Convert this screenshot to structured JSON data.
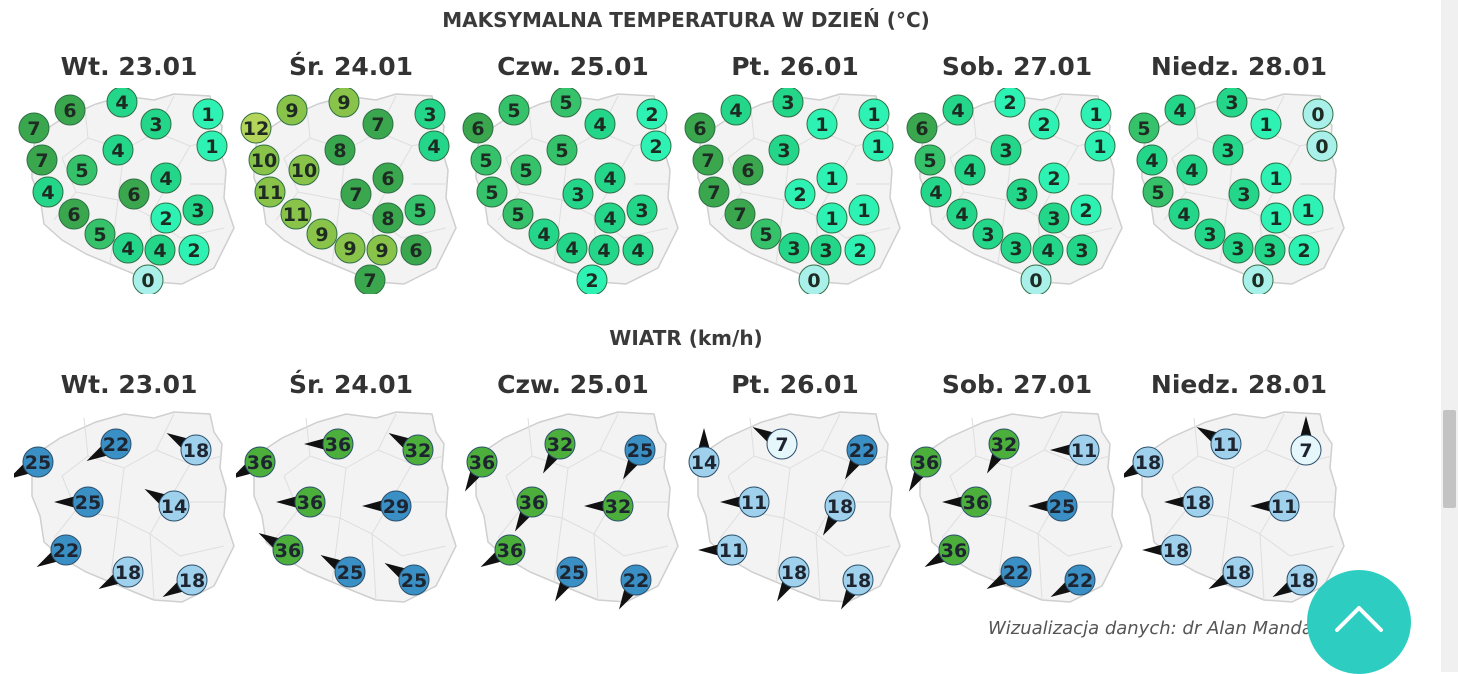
{
  "temperature": {
    "title": "MAKSYMALNA TEMPERATURA W DZIEŃ (°C)",
    "days": [
      {
        "label": "Wt. 23.01",
        "values": [
          7,
          6,
          4,
          3,
          1,
          1,
          4,
          7,
          5,
          4,
          4,
          6,
          6,
          2,
          3,
          5,
          4,
          4,
          2,
          0
        ]
      },
      {
        "label": "Śr. 24.01",
        "values": [
          12,
          9,
          9,
          7,
          3,
          4,
          8,
          10,
          10,
          6,
          11,
          7,
          11,
          8,
          5,
          9,
          9,
          9,
          6,
          7
        ]
      },
      {
        "label": "Czw. 25.01",
        "values": [
          6,
          5,
          5,
          4,
          2,
          2,
          5,
          5,
          5,
          4,
          5,
          3,
          5,
          4,
          3,
          4,
          4,
          4,
          4,
          2
        ]
      },
      {
        "label": "Pt. 26.01",
        "values": [
          6,
          4,
          3,
          1,
          1,
          1,
          3,
          7,
          6,
          1,
          7,
          2,
          7,
          1,
          1,
          5,
          3,
          3,
          2,
          0
        ]
      },
      {
        "label": "Sob. 27.01",
        "values": [
          6,
          4,
          2,
          2,
          1,
          1,
          3,
          5,
          4,
          2,
          4,
          3,
          4,
          3,
          2,
          3,
          3,
          4,
          3,
          0
        ]
      },
      {
        "label": "Niedz. 28.01",
        "values": [
          5,
          4,
          3,
          1,
          0,
          0,
          3,
          4,
          4,
          1,
          5,
          3,
          4,
          1,
          1,
          3,
          3,
          3,
          2,
          0
        ]
      }
    ]
  },
  "wind": {
    "title": "WIATR (km/h)",
    "days": [
      {
        "label": "Wt. 23.01",
        "values": [
          25,
          22,
          18,
          25,
          14,
          22,
          18,
          18
        ],
        "directions": [
          300,
          300,
          240,
          270,
          240,
          300,
          300,
          300
        ]
      },
      {
        "label": "Śr. 24.01",
        "values": [
          36,
          36,
          32,
          36,
          29,
          36,
          25,
          25
        ],
        "directions": [
          300,
          270,
          240,
          270,
          270,
          240,
          240,
          240
        ]
      },
      {
        "label": "Czw. 25.01",
        "values": [
          36,
          32,
          25,
          36,
          32,
          36,
          25,
          22
        ],
        "directions": [
          330,
          330,
          330,
          330,
          270,
          300,
          330,
          330
        ]
      },
      {
        "label": "Pt. 26.01",
        "values": [
          14,
          7,
          22,
          11,
          18,
          11,
          18,
          18
        ],
        "directions": [
          180,
          240,
          330,
          270,
          330,
          270,
          330,
          330
        ]
      },
      {
        "label": "Sob. 27.01",
        "values": [
          36,
          32,
          11,
          36,
          25,
          36,
          22,
          22
        ],
        "directions": [
          330,
          330,
          270,
          270,
          270,
          300,
          300,
          300
        ]
      },
      {
        "label": "Niedz. 28.01",
        "values": [
          18,
          11,
          7,
          18,
          11,
          18,
          18,
          18
        ],
        "directions": [
          300,
          240,
          180,
          270,
          270,
          270,
          300,
          300
        ]
      }
    ]
  },
  "credit": "Wizualizacja danych: dr Alan Manda",
  "scroll_top_icon": "chevron-up-icon",
  "colors": {
    "temp_scale": [
      "#aaf0ea",
      "#2ef2b4",
      "#24d68a",
      "#36c26a",
      "#3aa64e",
      "#8ac34a",
      "#b4d45a"
    ],
    "wind_scale": [
      "#e6f7fb",
      "#9fd1ed",
      "#3a8fc4",
      "#4caf3c"
    ],
    "map_fill": "#f3f3f3",
    "map_stroke": "#cfcfcf",
    "accent": "#2ecdc1"
  }
}
